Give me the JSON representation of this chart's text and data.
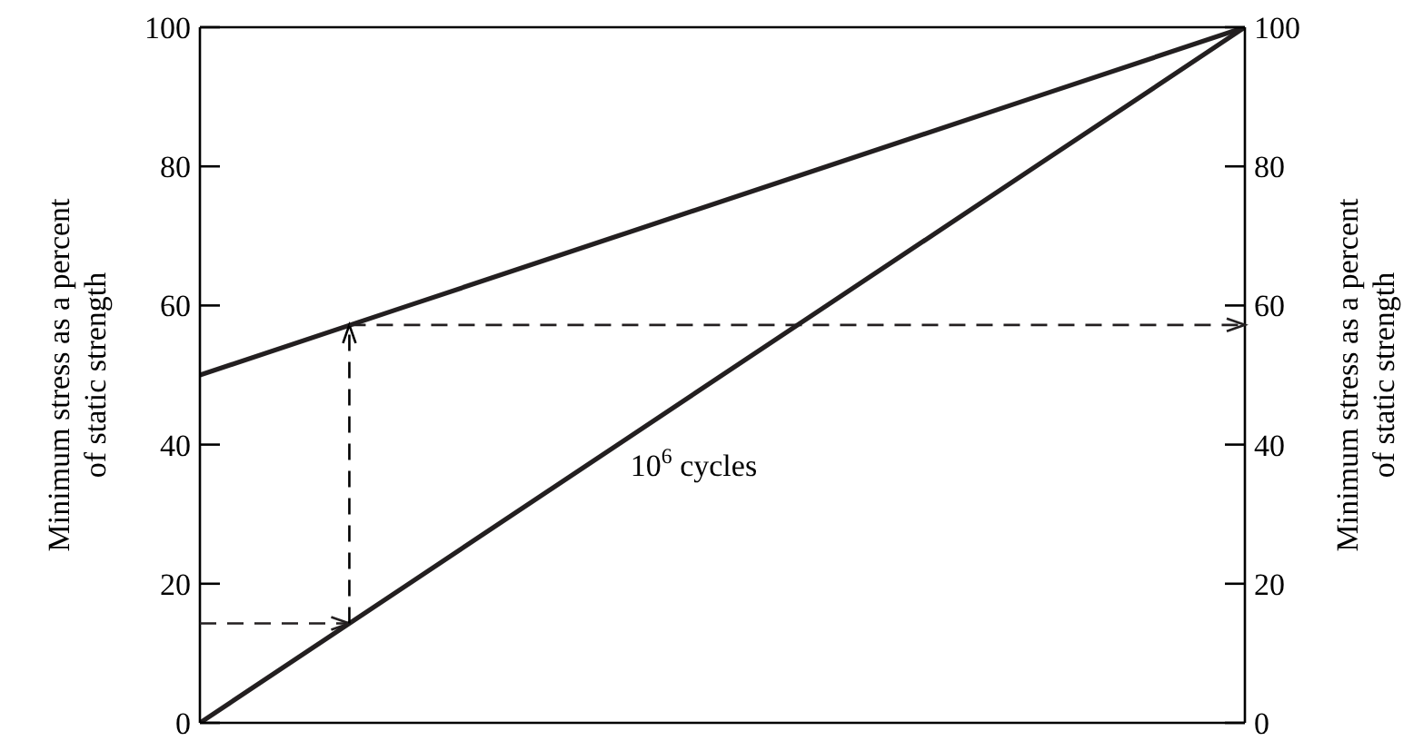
{
  "chart_data": {
    "type": "line",
    "ylabel": "Minimum stress as a percent\nof static strength",
    "y2label": "Minimum stress as a percent\nof static strength",
    "categories": [
      null,
      null,
      null,
      null,
      null,
      null
    ],
    "ylim": [
      0,
      100
    ],
    "yticks": [
      0,
      20,
      40,
      60,
      80,
      100
    ],
    "y2lim": [
      0,
      100
    ],
    "y2ticks": [
      0,
      20,
      40,
      60,
      80,
      100
    ],
    "tick_labels": "y",
    "grid": false,
    "legend": false,
    "marker": "none",
    "series": [
      {
        "color": "#231f20",
        "values": [
          50,
          60,
          70,
          80,
          90,
          100
        ]
      },
      {
        "color": "#231f20",
        "values": [
          0,
          20,
          40,
          60,
          80,
          100
        ]
      }
    ],
    "ref_lines": [
      {
        "axis": "y",
        "value": 14.3,
        "line_style": "dashed",
        "color": "#231f20"
      },
      {
        "axis": "y",
        "value": 57.2,
        "line_style": "dashed",
        "color": "#231f20"
      }
    ],
    "annotations": [
      {
        "text": "10$^{6}$ cycles"
      }
    ]
  }
}
